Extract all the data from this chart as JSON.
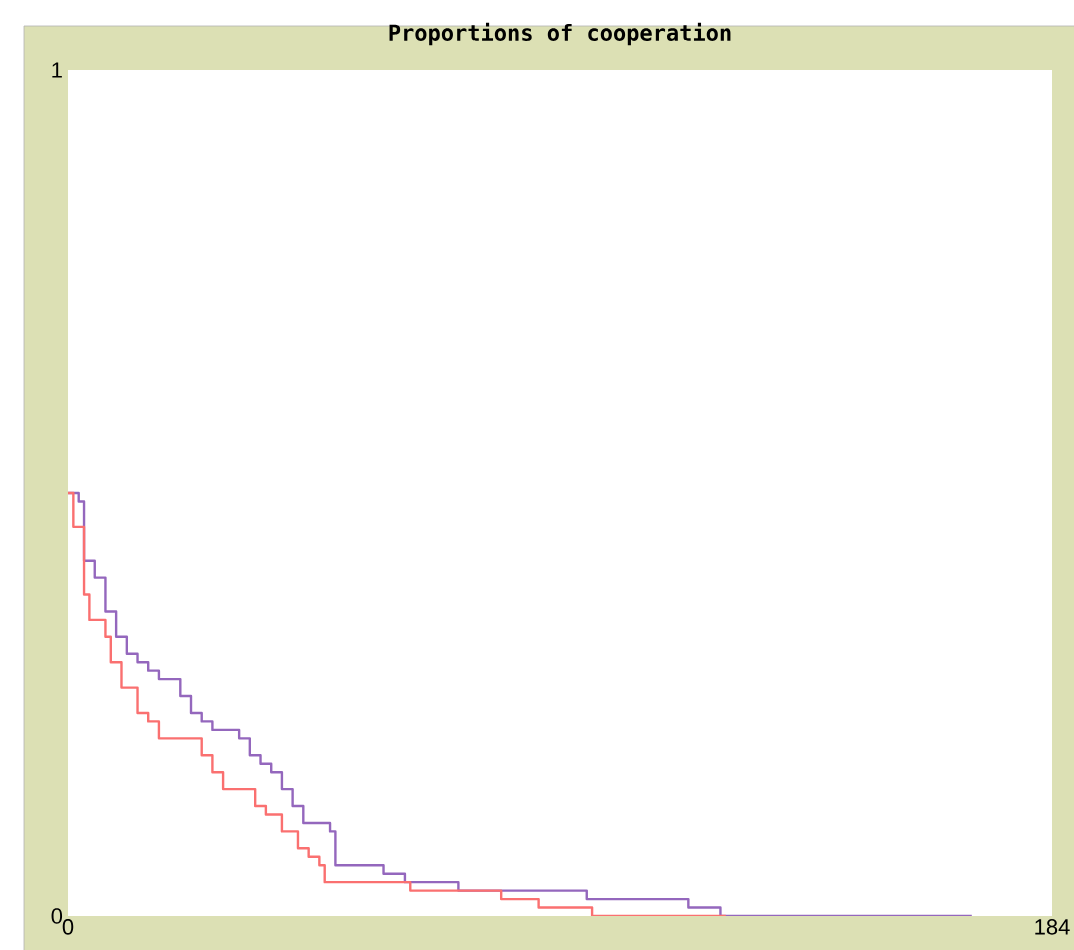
{
  "chart_data": {
    "type": "line",
    "title": "Proportions of cooperation",
    "xlim": [
      0,
      184
    ],
    "ylim": [
      0,
      1
    ],
    "xticks": [
      0,
      184
    ],
    "yticks": [
      0,
      1
    ],
    "series": [
      {
        "color": "#9467bd",
        "x": [
          0,
          2,
          2,
          3,
          3,
          5,
          5,
          7,
          7,
          9,
          9,
          11,
          11,
          13,
          13,
          15,
          15,
          17,
          17,
          21,
          21,
          23,
          23,
          25,
          25,
          27,
          27,
          32,
          32,
          34,
          34,
          36,
          36,
          38,
          38,
          40,
          40,
          42,
          42,
          44,
          44,
          49,
          49,
          50,
          50,
          59,
          59,
          63,
          63,
          73,
          73,
          97,
          97,
          116,
          116,
          122,
          122,
          169
        ],
        "values": [
          0.5,
          0.5,
          0.49,
          0.49,
          0.42,
          0.42,
          0.4,
          0.4,
          0.36,
          0.36,
          0.33,
          0.33,
          0.31,
          0.31,
          0.3,
          0.3,
          0.29,
          0.29,
          0.28,
          0.28,
          0.26,
          0.26,
          0.24,
          0.24,
          0.23,
          0.23,
          0.22,
          0.22,
          0.21,
          0.21,
          0.19,
          0.19,
          0.18,
          0.18,
          0.17,
          0.17,
          0.15,
          0.15,
          0.13,
          0.13,
          0.11,
          0.11,
          0.1,
          0.1,
          0.06,
          0.06,
          0.05,
          0.05,
          0.04,
          0.04,
          0.03,
          0.03,
          0.02,
          0.02,
          0.01,
          0.01,
          0,
          0
        ]
      },
      {
        "color": "#fa7070",
        "x": [
          0,
          1,
          1,
          3,
          3,
          4,
          4,
          7,
          7,
          8,
          8,
          10,
          10,
          13,
          13,
          15,
          15,
          17,
          17,
          25,
          25,
          27,
          27,
          29,
          29,
          35,
          35,
          37,
          37,
          40,
          40,
          43,
          43,
          45,
          45,
          47,
          47,
          48,
          48,
          64,
          64,
          81,
          81,
          88,
          88,
          98,
          98,
          123
        ],
        "values": [
          0.5,
          0.5,
          0.46,
          0.46,
          0.38,
          0.38,
          0.35,
          0.35,
          0.33,
          0.33,
          0.3,
          0.3,
          0.27,
          0.27,
          0.24,
          0.24,
          0.23,
          0.23,
          0.21,
          0.21,
          0.19,
          0.19,
          0.17,
          0.17,
          0.15,
          0.15,
          0.13,
          0.13,
          0.12,
          0.12,
          0.1,
          0.1,
          0.08,
          0.08,
          0.07,
          0.07,
          0.06,
          0.06,
          0.04,
          0.04,
          0.03,
          0.03,
          0.02,
          0.02,
          0.01,
          0.01,
          0,
          0
        ]
      }
    ]
  }
}
